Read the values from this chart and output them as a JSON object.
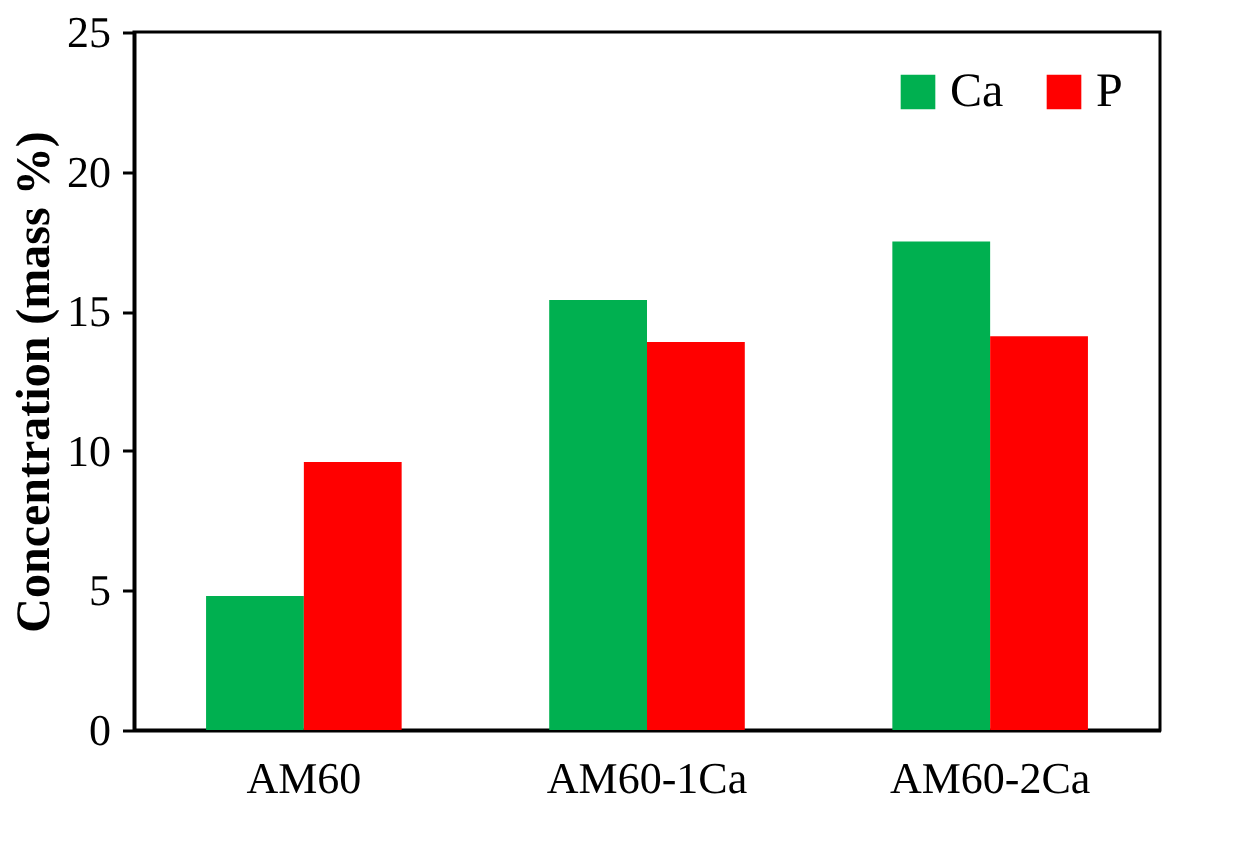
{
  "chart_data": {
    "type": "bar",
    "ylabel": "Concentration (mass %)",
    "categories": [
      "AM60",
      "AM60-1Ca",
      "AM60-2Ca"
    ],
    "series": [
      {
        "name": "Ca",
        "color": "#00b050",
        "values": [
          4.8,
          15.4,
          17.5
        ]
      },
      {
        "name": "P",
        "color": "#ff0000",
        "values": [
          9.6,
          13.9,
          14.1
        ]
      }
    ],
    "ylim": [
      0,
      25
    ],
    "yticks": [
      0,
      5,
      10,
      15,
      20,
      25
    ],
    "grid": false,
    "legend": "top right"
  }
}
